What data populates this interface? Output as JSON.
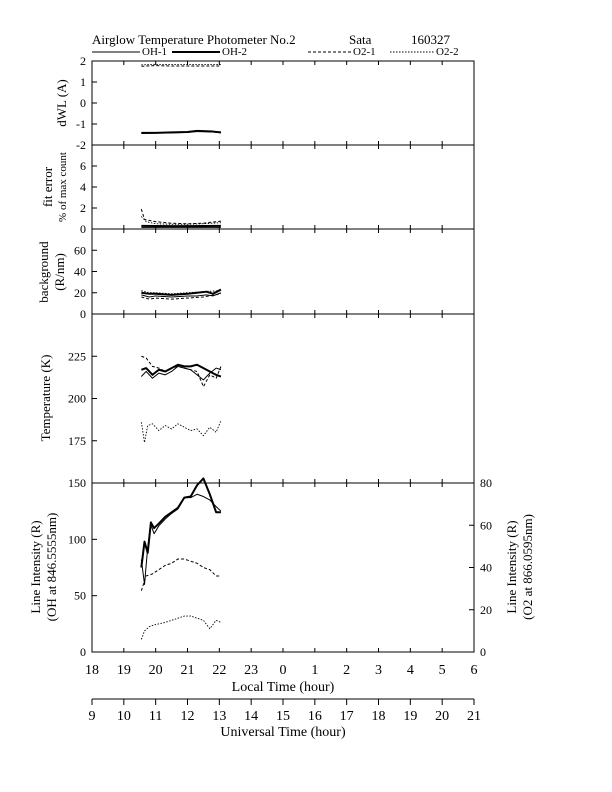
{
  "header": {
    "title": "Airglow Temperature Photometer No.2",
    "site": "Sata",
    "date": "160327",
    "legend": [
      "OH-1",
      "OH-2",
      "O2-1",
      "O2-2"
    ]
  },
  "chart_data": [
    {
      "id": "dwl",
      "type": "line",
      "ylabel_lines": [
        "dWL (A)"
      ],
      "ylim": [
        -2,
        2
      ],
      "yticks": [
        2,
        1,
        0,
        -1,
        -2
      ],
      "grid": false,
      "series": [
        {
          "name": "OH-1",
          "x": [
            19.55,
            20,
            20.5,
            21,
            21.3,
            21.8,
            22.05
          ],
          "y": [
            -1.45,
            -1.43,
            -1.42,
            -1.4,
            -1.36,
            -1.38,
            -1.42
          ]
        },
        {
          "name": "OH-2",
          "x": [
            19.55,
            20,
            20.5,
            21,
            21.3,
            21.8,
            22.05
          ],
          "y": [
            -1.42,
            -1.42,
            -1.4,
            -1.38,
            -1.33,
            -1.36,
            -1.4
          ]
        },
        {
          "name": "O2-1",
          "x": [
            19.55,
            20,
            20.5,
            21,
            21.5,
            22.05
          ],
          "y": [
            1.75,
            1.78,
            1.76,
            1.76,
            1.76,
            1.76
          ]
        },
        {
          "name": "O2-2",
          "x": [
            19.55,
            20,
            20.5,
            21,
            21.5,
            22.05
          ],
          "y": [
            1.82,
            1.84,
            1.83,
            1.83,
            1.83,
            1.83
          ]
        }
      ]
    },
    {
      "id": "fiterr",
      "type": "line",
      "ylabel_lines": [
        "fit error",
        "% of max count"
      ],
      "ylim": [
        0,
        8
      ],
      "yticks": [
        6,
        4,
        2,
        0
      ],
      "grid": false,
      "series": [
        {
          "name": "OH-1",
          "x": [
            19.55,
            20,
            20.5,
            21,
            21.5,
            22.05
          ],
          "y": [
            0.15,
            0.15,
            0.15,
            0.15,
            0.15,
            0.15
          ]
        },
        {
          "name": "OH-2",
          "x": [
            19.55,
            20,
            20.5,
            21,
            21.5,
            22.05
          ],
          "y": [
            0.3,
            0.28,
            0.27,
            0.27,
            0.28,
            0.3
          ]
        },
        {
          "name": "O2-1",
          "x": [
            19.55,
            19.65,
            20,
            20.5,
            21,
            21.5,
            22.05
          ],
          "y": [
            1.9,
            0.9,
            0.7,
            0.55,
            0.5,
            0.55,
            0.75
          ]
        },
        {
          "name": "O2-2",
          "x": [
            19.55,
            19.7,
            20,
            20.5,
            21,
            21.5,
            22.05
          ],
          "y": [
            1.2,
            0.7,
            0.5,
            0.45,
            0.45,
            0.5,
            0.6
          ]
        }
      ]
    },
    {
      "id": "background",
      "type": "line",
      "ylabel_lines": [
        "background",
        "(R/nm)"
      ],
      "ylim": [
        0,
        80
      ],
      "yticks": [
        60,
        40,
        20,
        0
      ],
      "grid": false,
      "series": [
        {
          "name": "OH-1",
          "x": [
            19.55,
            19.8,
            20,
            20.5,
            21,
            21.3,
            21.6,
            21.8,
            22.05
          ],
          "y": [
            18,
            16,
            17,
            16,
            17,
            17,
            18,
            17,
            20
          ]
        },
        {
          "name": "OH-2",
          "x": [
            19.55,
            19.8,
            20,
            20.5,
            21,
            21.3,
            21.6,
            21.8,
            22.05
          ],
          "y": [
            20,
            19,
            19,
            18,
            19,
            20,
            21,
            19,
            23
          ]
        },
        {
          "name": "O2-1",
          "x": [
            19.55,
            19.8,
            20,
            20.5,
            21,
            21.5,
            22.05
          ],
          "y": [
            16,
            14,
            15,
            14,
            15,
            16,
            19
          ]
        },
        {
          "name": "O2-2",
          "x": [
            19.55,
            19.8,
            20,
            20.5,
            21,
            21.5,
            22.05
          ],
          "y": [
            22,
            20,
            20,
            19,
            20,
            21,
            22
          ]
        }
      ]
    },
    {
      "id": "temperature",
      "type": "line",
      "ylabel_lines": [
        "Temperature (K)"
      ],
      "ylim": [
        150,
        250
      ],
      "yticks": [
        225,
        200,
        175
      ],
      "grid": false,
      "series": [
        {
          "name": "OH-1",
          "x": [
            19.55,
            19.7,
            19.9,
            20.1,
            20.3,
            20.5,
            20.7,
            20.9,
            21.1,
            21.3,
            21.5,
            21.7,
            21.9,
            22.05
          ],
          "y": [
            213,
            216,
            212,
            215,
            214,
            216,
            219,
            218,
            217,
            214,
            211,
            215,
            218,
            217
          ]
        },
        {
          "name": "OH-2",
          "x": [
            19.55,
            19.7,
            19.9,
            20.1,
            20.3,
            20.5,
            20.7,
            20.9,
            21.1,
            21.3,
            21.5,
            21.7,
            21.9,
            22.05
          ],
          "y": [
            217,
            218,
            214,
            217,
            216,
            218,
            220,
            219,
            219,
            220,
            218,
            216,
            214,
            213
          ]
        },
        {
          "name": "O2-1",
          "x": [
            19.55,
            19.7,
            19.9,
            20.1,
            20.3,
            20.5,
            20.7,
            20.9,
            21.1,
            21.3,
            21.5,
            21.7,
            21.9,
            22.05
          ],
          "y": [
            225,
            224,
            219,
            218,
            216,
            218,
            219,
            218,
            217,
            216,
            207,
            214,
            212,
            219
          ]
        },
        {
          "name": "O2-2",
          "x": [
            19.55,
            19.65,
            19.75,
            19.9,
            20.1,
            20.3,
            20.5,
            20.7,
            20.9,
            21.1,
            21.3,
            21.5,
            21.7,
            21.9,
            22.05
          ],
          "y": [
            186,
            174,
            184,
            185,
            181,
            184,
            182,
            185,
            183,
            181,
            182,
            178,
            183,
            180,
            187
          ]
        }
      ]
    },
    {
      "id": "intensity",
      "type": "line",
      "ylabel_lines": [
        "Line Intensity (R)",
        "(OH at 846.5555nm)"
      ],
      "ylabel_right_lines": [
        "Line Intensity (R)",
        "(O2 at 866.0595nm)"
      ],
      "ylim": [
        0,
        150
      ],
      "ylim_right": [
        0,
        80
      ],
      "yticks": [
        150,
        100,
        50,
        0
      ],
      "yticks_right": [
        80,
        60,
        40,
        20,
        0
      ],
      "grid": false,
      "series": [
        {
          "name": "OH-1",
          "axis": "left",
          "x": [
            19.55,
            19.65,
            19.75,
            19.85,
            19.95,
            20.1,
            20.3,
            20.5,
            20.7,
            20.9,
            21.1,
            21.3,
            21.5,
            21.7,
            21.9,
            22.05
          ],
          "y": [
            82,
            60,
            93,
            113,
            105,
            112,
            118,
            123,
            127,
            137,
            137,
            140,
            138,
            135,
            129,
            125
          ]
        },
        {
          "name": "OH-2",
          "axis": "left",
          "x": [
            19.55,
            19.65,
            19.75,
            19.85,
            19.95,
            20.1,
            20.3,
            20.5,
            20.7,
            20.9,
            21.1,
            21.3,
            21.5,
            21.7,
            21.9,
            22.05
          ],
          "y": [
            75,
            98,
            88,
            115,
            110,
            114,
            120,
            124,
            128,
            137,
            138,
            148,
            154,
            140,
            124,
            124
          ]
        },
        {
          "name": "O2-1",
          "axis": "right",
          "x": [
            19.55,
            19.7,
            19.9,
            20.1,
            20.3,
            20.5,
            20.7,
            20.9,
            21.1,
            21.3,
            21.5,
            21.7,
            21.9,
            22.05
          ],
          "y": [
            29,
            36,
            37,
            39,
            41,
            42,
            44,
            44,
            43,
            42,
            40,
            39,
            36,
            36
          ]
        },
        {
          "name": "O2-2",
          "axis": "right",
          "x": [
            19.55,
            19.65,
            19.8,
            20.0,
            20.3,
            20.5,
            20.7,
            20.9,
            21.1,
            21.3,
            21.5,
            21.7,
            21.9,
            22.05
          ],
          "y": [
            6,
            10,
            12,
            13,
            14,
            15,
            16,
            17,
            17,
            16,
            15,
            11,
            15,
            14
          ]
        }
      ]
    }
  ],
  "axes": {
    "local_time": {
      "label": "Local Time (hour)",
      "range": [
        18,
        30
      ],
      "tick_values": [
        18,
        19,
        20,
        21,
        22,
        23,
        24,
        25,
        26,
        27,
        28,
        29,
        30
      ],
      "tick_labels": [
        "18",
        "19",
        "20",
        "21",
        "22",
        "23",
        "0",
        "1",
        "2",
        "3",
        "4",
        "5",
        "6"
      ]
    },
    "universal_time": {
      "label": "Universal Time (hour)",
      "range": [
        9,
        21
      ],
      "tick_values": [
        9,
        10,
        11,
        12,
        13,
        14,
        15,
        16,
        17,
        18,
        19,
        20,
        21
      ],
      "tick_labels": [
        "9",
        "10",
        "11",
        "12",
        "13",
        "14",
        "15",
        "16",
        "17",
        "18",
        "19",
        "20",
        "21"
      ]
    }
  },
  "styles": {
    "OH-1": {
      "color": "#000000",
      "width": 1.0,
      "dash": ""
    },
    "OH-2": {
      "color": "#000000",
      "width": 2.0,
      "dash": ""
    },
    "O2-1": {
      "color": "#000000",
      "width": 1.0,
      "dash": "3,2"
    },
    "O2-2": {
      "color": "#000000",
      "width": 0.9,
      "dash": "1.5,1.5"
    }
  }
}
